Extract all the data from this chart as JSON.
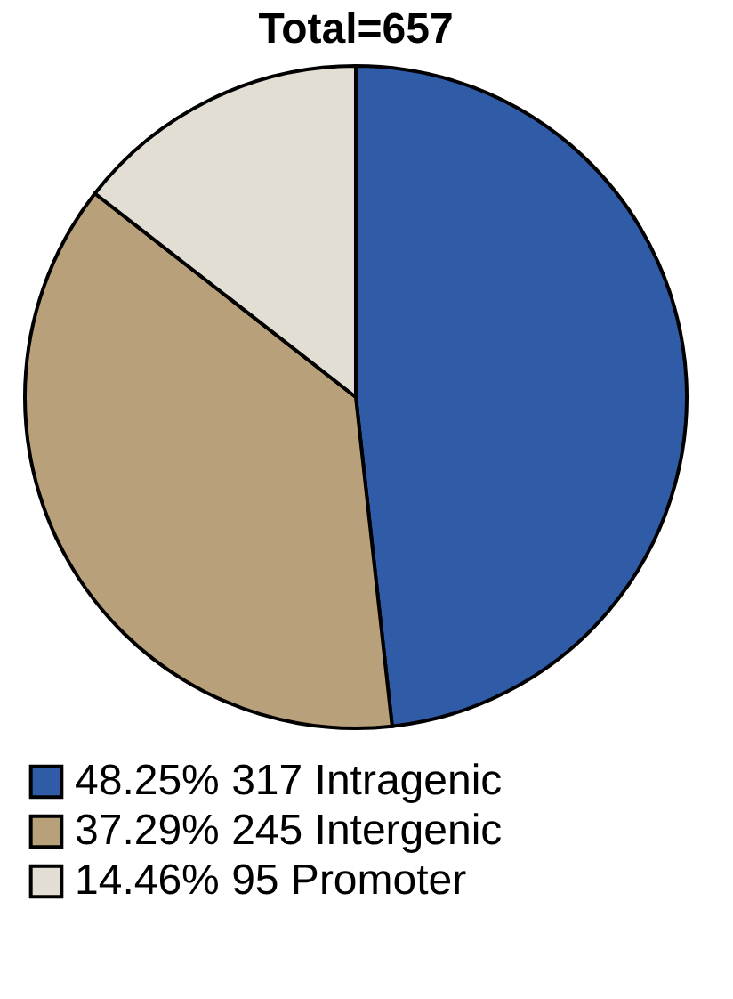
{
  "chart_data": {
    "type": "pie",
    "title": "Total=657",
    "categories": [
      "48.25%  317 Intragenic",
      "37.29%  245 Intergenic",
      "14.46%  95 Promoter"
    ],
    "values": [
      317,
      245,
      95
    ],
    "colors": [
      "#2f5ba7",
      "#b8a07a",
      "#e3ded3"
    ],
    "legend": "bottom"
  }
}
